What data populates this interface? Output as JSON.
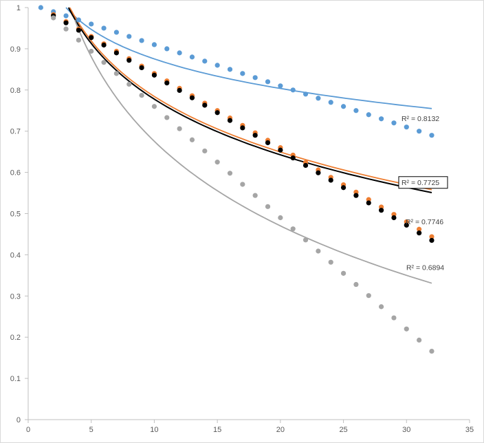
{
  "chart_data": {
    "type": "scatter",
    "title": "",
    "xlabel": "",
    "ylabel": "",
    "xlim": [
      0,
      35
    ],
    "ylim": [
      0,
      1
    ],
    "x_ticks": [
      0,
      5,
      10,
      15,
      20,
      25,
      30,
      35
    ],
    "y_ticks": [
      0,
      0.1,
      0.2,
      0.3,
      0.4,
      0.5,
      0.6,
      0.7,
      0.8,
      0.9,
      1
    ],
    "grid": false,
    "legend": "none",
    "series": [
      {
        "color": "#5b9bd5",
        "x": [
          1,
          2,
          3,
          4,
          5,
          6,
          7,
          8,
          9,
          10,
          11,
          12,
          13,
          14,
          15,
          16,
          17,
          18,
          19,
          20,
          21,
          22,
          23,
          24,
          25,
          26,
          27,
          28,
          29,
          30,
          31,
          32
        ],
        "y": [
          1.0,
          0.99,
          0.98,
          0.97,
          0.96,
          0.95,
          0.94,
          0.93,
          0.92,
          0.91,
          0.9,
          0.89,
          0.88,
          0.87,
          0.86,
          0.85,
          0.84,
          0.83,
          0.82,
          0.81,
          0.8,
          0.79,
          0.78,
          0.77,
          0.76,
          0.75,
          0.74,
          0.73,
          0.72,
          0.71,
          0.7,
          0.69
        ],
        "trendline": {
          "type": "logarithmic",
          "x_start": 3,
          "x_end": 32,
          "y_start": 1.0,
          "y_end": 0.755,
          "r2": "R² = 0.8132",
          "r2_boxed": false
        }
      },
      {
        "color": "#ed7d31",
        "x": [
          2,
          3,
          4,
          5,
          6,
          7,
          8,
          9,
          10,
          11,
          12,
          13,
          14,
          15,
          16,
          17,
          18,
          19,
          20,
          21,
          22,
          23,
          24,
          25,
          26,
          27,
          28,
          29,
          30,
          31,
          32
        ],
        "y": [
          0.983,
          0.966,
          0.948,
          0.93,
          0.912,
          0.894,
          0.876,
          0.858,
          0.84,
          0.822,
          0.804,
          0.786,
          0.768,
          0.75,
          0.732,
          0.714,
          0.696,
          0.678,
          0.66,
          0.642,
          0.624,
          0.606,
          0.588,
          0.57,
          0.552,
          0.534,
          0.516,
          0.498,
          0.48,
          0.462,
          0.444
        ],
        "trendline": {
          "type": "logarithmic",
          "x_start": 3.3,
          "x_end": 32,
          "y_start": 1.0,
          "y_end": 0.558,
          "r2": "R² = 0.7725",
          "r2_boxed": true
        }
      },
      {
        "color": "#000000",
        "x": [
          2,
          3,
          4,
          5,
          6,
          7,
          8,
          9,
          10,
          11,
          12,
          13,
          14,
          15,
          16,
          17,
          18,
          19,
          20,
          21,
          22,
          23,
          24,
          25,
          26,
          27,
          28,
          29,
          30,
          31,
          32
        ],
        "y": [
          0.98,
          0.963,
          0.945,
          0.927,
          0.909,
          0.89,
          0.872,
          0.854,
          0.836,
          0.817,
          0.799,
          0.781,
          0.763,
          0.745,
          0.726,
          0.708,
          0.69,
          0.672,
          0.654,
          0.635,
          0.617,
          0.599,
          0.581,
          0.563,
          0.544,
          0.526,
          0.508,
          0.49,
          0.472,
          0.453,
          0.435
        ],
        "trendline": {
          "type": "logarithmic",
          "x_start": 3.2,
          "x_end": 32,
          "y_start": 1.0,
          "y_end": 0.551,
          "r2": "R² = 0.7746",
          "r2_boxed": false
        }
      },
      {
        "color": "#a5a5a5",
        "x": [
          2,
          3,
          4,
          5,
          6,
          7,
          8,
          9,
          10,
          11,
          12,
          13,
          14,
          15,
          16,
          17,
          18,
          19,
          20,
          21,
          22,
          23,
          24,
          25,
          26,
          27,
          28,
          29,
          30,
          31,
          32
        ],
        "y": [
          0.975,
          0.948,
          0.921,
          0.894,
          0.867,
          0.84,
          0.814,
          0.787,
          0.76,
          0.733,
          0.706,
          0.679,
          0.652,
          0.625,
          0.598,
          0.571,
          0.544,
          0.517,
          0.49,
          0.463,
          0.436,
          0.409,
          0.382,
          0.355,
          0.328,
          0.301,
          0.274,
          0.247,
          0.22,
          0.193,
          0.166
        ],
        "trendline": {
          "type": "logarithmic",
          "x_start": 3.7,
          "x_end": 32,
          "y_start": 0.97,
          "y_end": 0.331,
          "r2": "R² = 0.6894",
          "r2_boxed": false
        }
      }
    ]
  }
}
